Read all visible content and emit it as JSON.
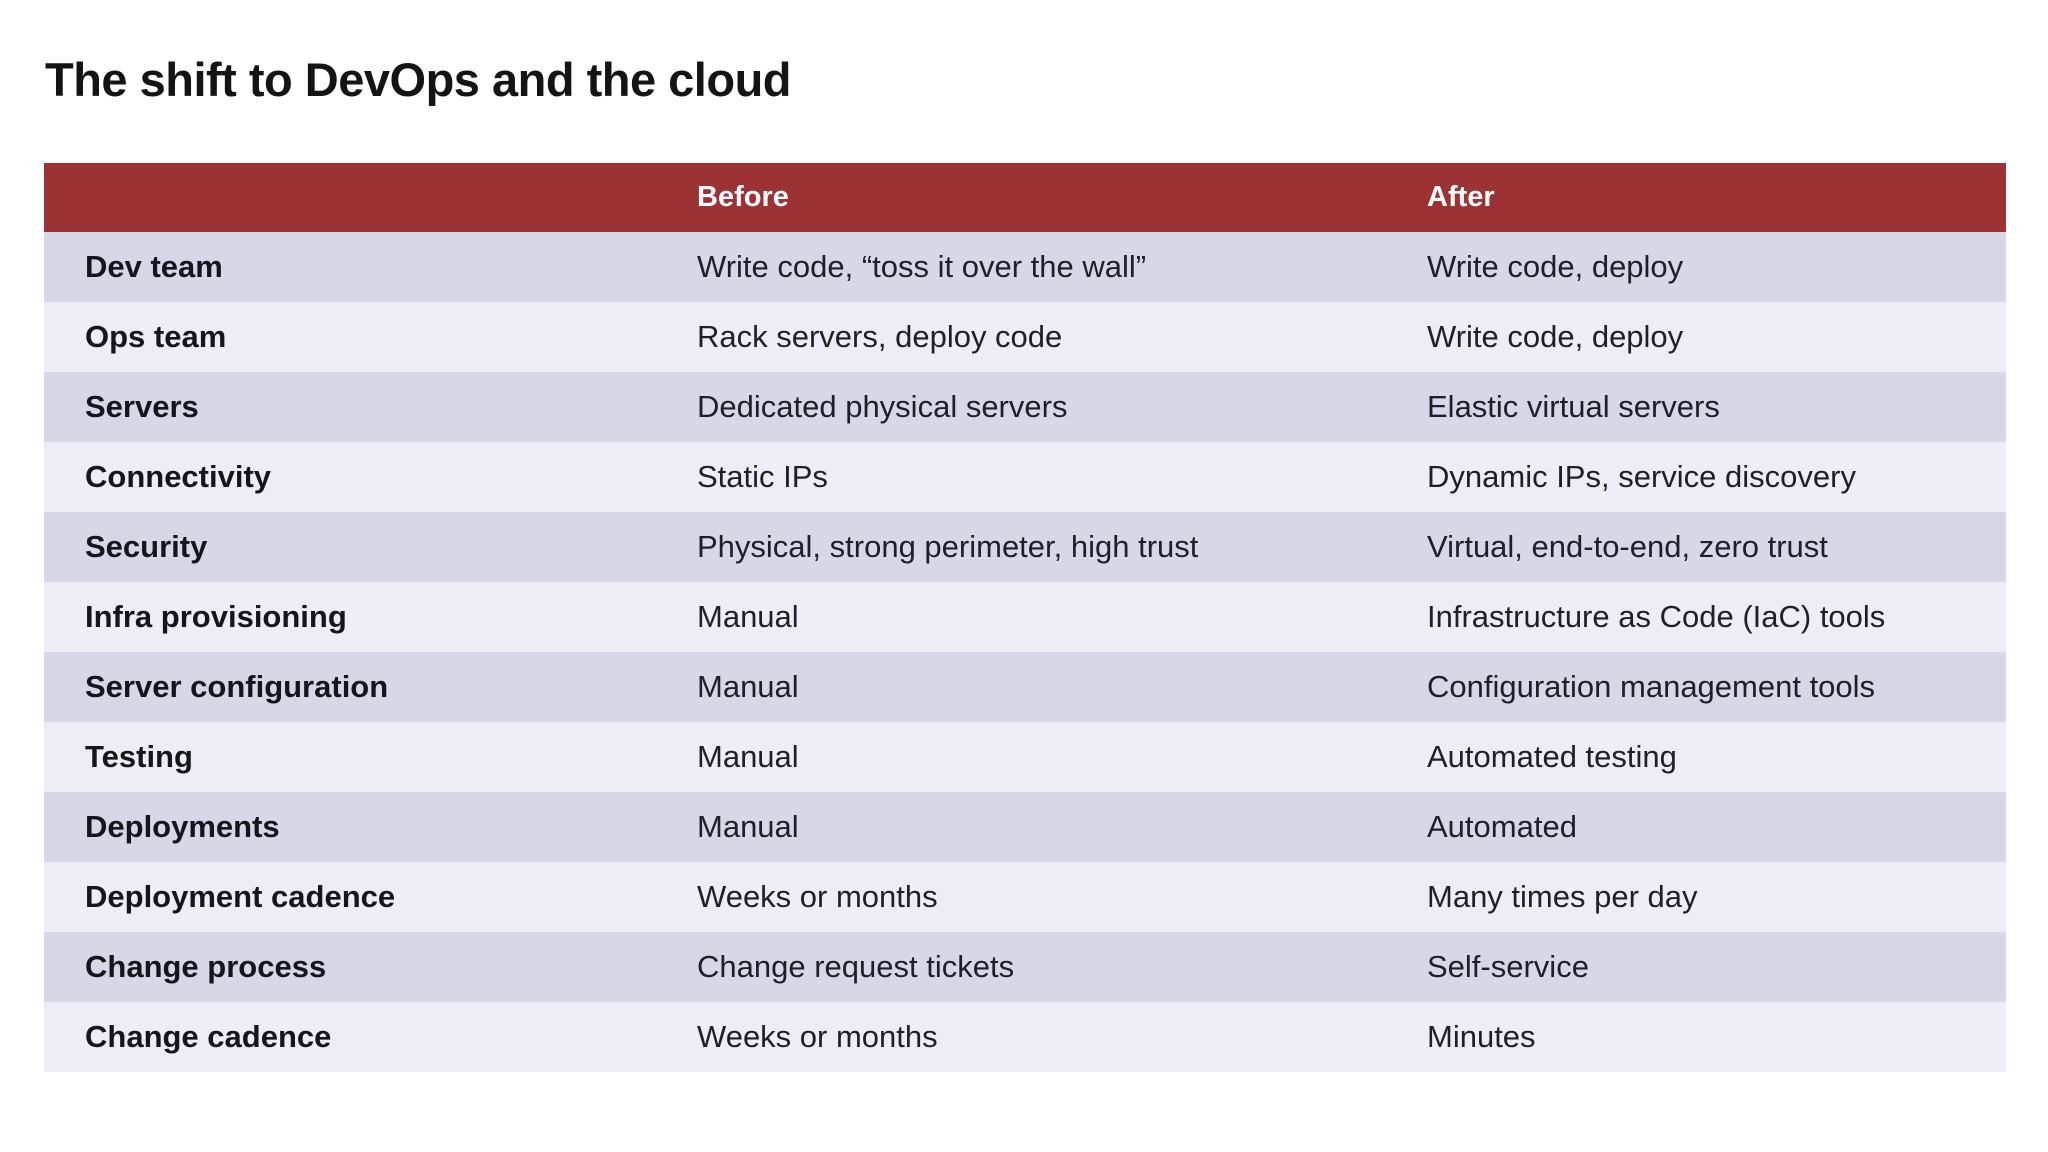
{
  "title": "The shift to DevOps and the cloud",
  "table": {
    "header": {
      "label": "",
      "before": "Before",
      "after": "After"
    },
    "rows": [
      {
        "label": "Dev team",
        "before": "Write code, “toss it over the wall”",
        "after": "Write code, deploy"
      },
      {
        "label": "Ops team",
        "before": "Rack servers, deploy code",
        "after": "Write code, deploy"
      },
      {
        "label": "Servers",
        "before": "Dedicated physical servers",
        "after": "Elastic virtual servers"
      },
      {
        "label": "Connectivity",
        "before": "Static IPs",
        "after": "Dynamic IPs, service discovery"
      },
      {
        "label": "Security",
        "before": "Physical, strong perimeter, high trust",
        "after": "Virtual, end-to-end, zero trust"
      },
      {
        "label": "Infra provisioning",
        "before": "Manual",
        "after": "Infrastructure as Code (IaC) tools"
      },
      {
        "label": "Server configuration",
        "before": "Manual",
        "after": "Configuration management tools"
      },
      {
        "label": "Testing",
        "before": "Manual",
        "after": "Automated testing"
      },
      {
        "label": "Deployments",
        "before": "Manual",
        "after": "Automated"
      },
      {
        "label": "Deployment cadence",
        "before": "Weeks or months",
        "after": "Many times per day"
      },
      {
        "label": "Change process",
        "before": "Change request tickets",
        "after": "Self-service"
      },
      {
        "label": "Change cadence",
        "before": "Weeks or months",
        "after": "Minutes"
      }
    ]
  },
  "colors": {
    "header_bg": "#9d3235",
    "header_text": "#ffffff",
    "row_dark_bg": "#d8d7e8",
    "row_light_bg": "#eeedf5",
    "title_text": "#141414",
    "body_text": "#1f1f27",
    "page_bg": "#ffffff"
  }
}
